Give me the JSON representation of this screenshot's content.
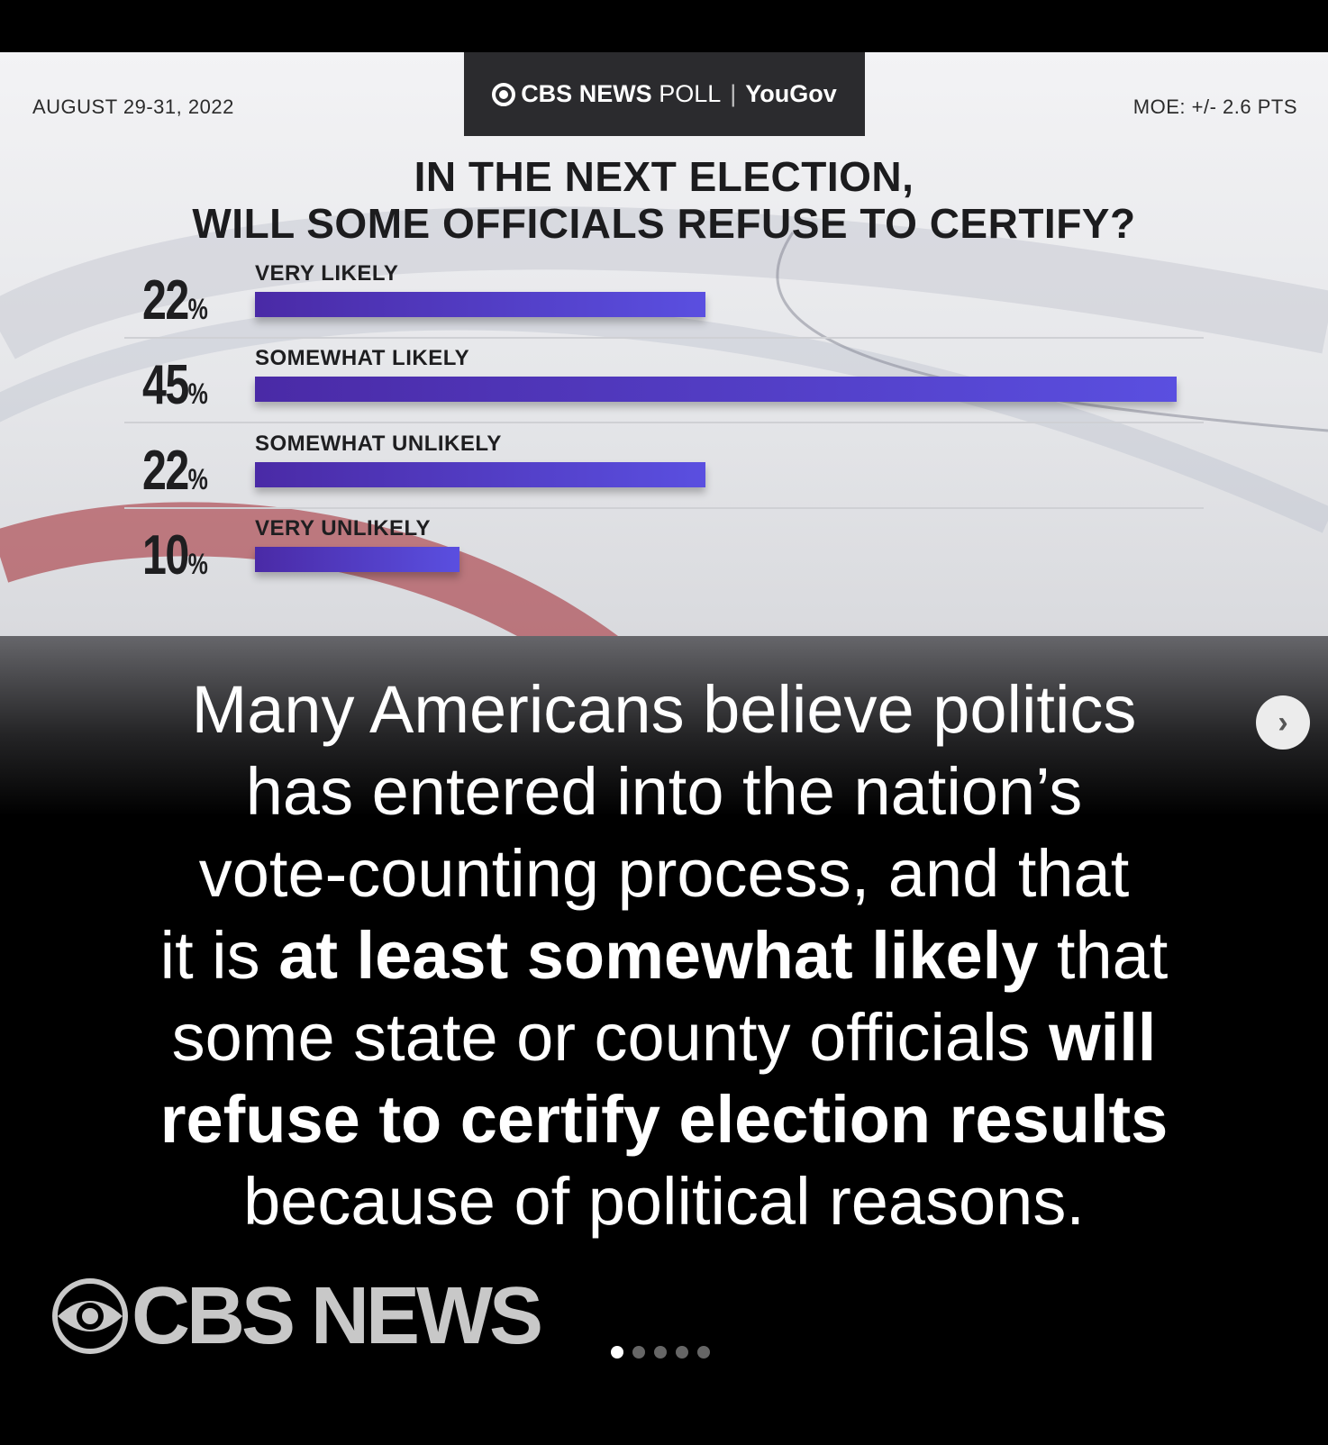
{
  "poll": {
    "date": "AUGUST 29-31, 2022",
    "brand": {
      "cbs": "CBS NEWS",
      "poll": "POLL",
      "sep": "|",
      "partner": "YouGov"
    },
    "moe": "MOE: +/- 2.6 PTS",
    "title_line1": "IN THE NEXT ELECTION,",
    "title_line2": "WILL SOME OFFICIALS REFUSE TO CERTIFY?",
    "percent_sign": "%",
    "rows": [
      {
        "value": "22",
        "label": "VERY LIKELY",
        "fraction": 0.22
      },
      {
        "value": "45",
        "label": "SOMEWHAT LIKELY",
        "fraction": 0.45
      },
      {
        "value": "22",
        "label": "SOMEWHAT UNLIKELY",
        "fraction": 0.22
      },
      {
        "value": "10",
        "label": "VERY UNLIKELY",
        "fraction": 0.1
      }
    ],
    "colors": {
      "bar_start": "#4a2aa6",
      "bar_end": "#5a4fe0",
      "swoosh_red": "#a0222c"
    }
  },
  "chart_data": {
    "type": "bar",
    "title": "IN THE NEXT ELECTION, WILL SOME OFFICIALS REFUSE TO CERTIFY?",
    "categories": [
      "VERY LIKELY",
      "SOMEWHAT LIKELY",
      "SOMEWHAT UNLIKELY",
      "VERY UNLIKELY"
    ],
    "values": [
      22,
      45,
      22,
      10
    ],
    "unit": "%"
  },
  "caption": {
    "l1": "Many Americans believe politics",
    "l2": "has entered into the nation’s",
    "l3": "vote-counting process, and that",
    "l4a": "it is ",
    "l4b": "at least somewhat likely",
    "l4c": " that",
    "l5a": "some state or county officials ",
    "l5b": "will",
    "l6": "refuse to certify election results",
    "l7": "because of political reasons."
  },
  "footer": {
    "logo_text": "CBS NEWS",
    "carousel_count": 5,
    "carousel_active": 0
  },
  "icons": {
    "next": "chevron-right-icon"
  }
}
